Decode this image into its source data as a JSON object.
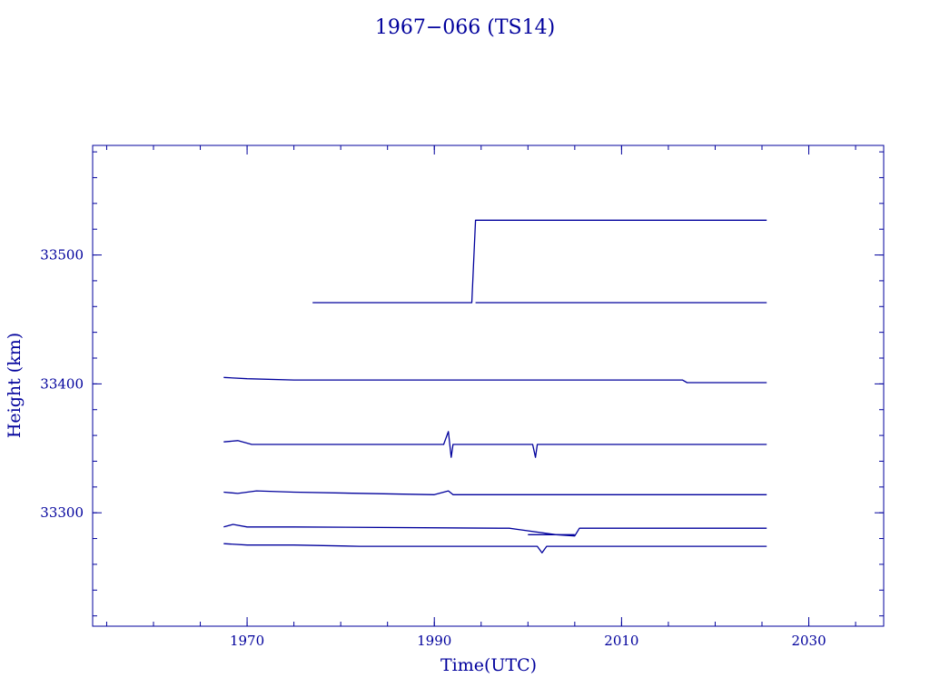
{
  "chart_data": {
    "type": "line",
    "title": "1967−066 (TS14)",
    "xlabel": "Time(UTC)",
    "ylabel": "Height (km)",
    "xlim": [
      1953.5,
      2038
    ],
    "ylim": [
      33212,
      33585
    ],
    "x_ticks": [
      1970,
      1990,
      2010,
      2030
    ],
    "x_tick_labels": [
      "1970",
      "1990",
      "2010",
      "2030"
    ],
    "y_ticks": [
      33300,
      33400,
      33500
    ],
    "y_tick_labels": [
      "33300",
      "33400",
      "33500"
    ],
    "x_minor_step": 5,
    "y_minor_step": 20,
    "grid": false,
    "color": "#00009c",
    "series": [
      {
        "x": [
          1977,
          1990,
          1994,
          1994.4,
          2006,
          2016,
          2025.5
        ],
        "y": [
          33463,
          33463,
          33463,
          33527,
          33527,
          33527,
          33527
        ]
      },
      {
        "x": [
          1994.4,
          2005,
          2016,
          2025.5
        ],
        "y": [
          33463,
          33463,
          33463,
          33463
        ]
      },
      {
        "x": [
          1967.5,
          1970,
          1975,
          1990,
          2005,
          2016.5,
          2017,
          2025.5
        ],
        "y": [
          33405,
          33404,
          33403,
          33403,
          33403,
          33403,
          33401,
          33401
        ]
      },
      {
        "x": [
          1967.5,
          1969,
          1970.5,
          1975,
          1991,
          1991.5,
          1991.8,
          1992,
          1992.3,
          1995,
          2000,
          2000.5,
          2000.8,
          2001,
          2025.5
        ],
        "y": [
          33355,
          33356,
          33353,
          33353,
          33353,
          33363,
          33343,
          33353,
          33353,
          33353,
          33353,
          33353,
          33343,
          33353,
          33353
        ]
      },
      {
        "x": [
          1967.5,
          1969,
          1971,
          1975,
          1990,
          1991.5,
          1992,
          2000,
          2025.5
        ],
        "y": [
          33316,
          33315,
          33317,
          33316,
          33314,
          33317,
          33314,
          33314,
          33314
        ]
      },
      {
        "x": [
          1967.5,
          1968.5,
          1970,
          1975,
          1997,
          1998,
          1999,
          2003,
          2005,
          2005.5,
          2025.5
        ],
        "y": [
          33289,
          33291,
          33289,
          33289,
          33288,
          33288,
          33287,
          33283,
          33282,
          33288,
          33288
        ]
      },
      {
        "x": [
          2000,
          2003,
          2005
        ],
        "y": [
          33283,
          33283,
          33283
        ]
      },
      {
        "x": [
          1967.5,
          1970,
          1975,
          1982,
          1990,
          2001,
          2001.5,
          2002,
          2025.5
        ],
        "y": [
          33276,
          33275,
          33275,
          33274,
          33274,
          33274,
          33269,
          33274,
          33274
        ]
      }
    ]
  }
}
